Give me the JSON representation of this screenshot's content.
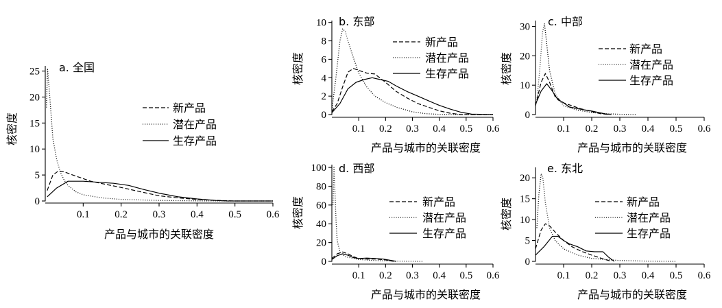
{
  "chart_data": [
    {
      "id": "a",
      "type": "line",
      "title": "a. 全国",
      "xlabel": "产品与城市的关联密度",
      "ylabel": "核密度",
      "xlim": [
        0,
        0.6
      ],
      "ylim": [
        0,
        26
      ],
      "xticks": [
        0.1,
        0.2,
        0.3,
        0.4,
        0.5,
        0.6
      ],
      "yticks": [
        0,
        5,
        10,
        15,
        20,
        25
      ],
      "legend_position": "right",
      "series": [
        {
          "name": "新产品",
          "style": "dashed",
          "x": [
            0.005,
            0.02,
            0.035,
            0.05,
            0.08,
            0.12,
            0.16,
            0.2,
            0.25,
            0.3,
            0.35,
            0.4,
            0.45,
            0.5,
            0.6
          ],
          "y": [
            2.0,
            5.0,
            5.8,
            5.6,
            4.8,
            3.8,
            3.2,
            2.6,
            1.8,
            1.0,
            0.6,
            0.3,
            0.1,
            0.0,
            0.0
          ]
        },
        {
          "name": "潜在产品",
          "style": "dotted",
          "x": [
            0.003,
            0.006,
            0.01,
            0.015,
            0.02,
            0.03,
            0.04,
            0.05,
            0.06,
            0.08,
            0.1,
            0.15,
            0.2,
            0.3,
            0.4,
            0.5,
            0.6
          ],
          "y": [
            18.0,
            25.5,
            22.0,
            17.0,
            12.0,
            8.0,
            5.5,
            4.0,
            3.0,
            1.8,
            1.2,
            0.6,
            0.3,
            0.1,
            0.02,
            0.0,
            0.0
          ]
        },
        {
          "name": "生存产品",
          "style": "solid",
          "x": [
            0.005,
            0.03,
            0.06,
            0.1,
            0.14,
            0.18,
            0.22,
            0.26,
            0.3,
            0.35,
            0.4,
            0.45,
            0.48,
            0.6
          ],
          "y": [
            0.8,
            2.5,
            3.8,
            3.8,
            3.6,
            3.4,
            3.0,
            2.2,
            1.5,
            0.8,
            0.4,
            0.1,
            0.0,
            0.0
          ]
        }
      ]
    },
    {
      "id": "b",
      "type": "line",
      "title": "b. 东部",
      "xlabel": "产品与城市的关联密度",
      "ylabel": "核密度",
      "xlim": [
        0,
        0.6
      ],
      "ylim": [
        0,
        10.2
      ],
      "xticks": [
        0.1,
        0.2,
        0.3,
        0.4,
        0.5,
        0.6
      ],
      "yticks": [
        0,
        2,
        4,
        6,
        8,
        10
      ],
      "legend_position": "top-right",
      "series": [
        {
          "name": "新产品",
          "style": "dashed",
          "x": [
            0.0,
            0.02,
            0.04,
            0.06,
            0.08,
            0.1,
            0.13,
            0.16,
            0.2,
            0.24,
            0.28,
            0.32,
            0.36,
            0.4,
            0.44,
            0.48,
            0.6
          ],
          "y": [
            0.3,
            1.2,
            3.0,
            4.6,
            5.0,
            4.8,
            4.5,
            4.4,
            3.5,
            2.5,
            1.8,
            1.2,
            0.8,
            0.4,
            0.15,
            0.0,
            0.0
          ]
        },
        {
          "name": "潜在产品",
          "style": "dotted",
          "x": [
            0.0,
            0.015,
            0.03,
            0.04,
            0.05,
            0.06,
            0.08,
            0.1,
            0.13,
            0.16,
            0.2,
            0.24,
            0.3,
            0.35,
            0.4,
            0.45,
            0.6
          ],
          "y": [
            0.5,
            4.0,
            8.0,
            9.3,
            9.0,
            8.0,
            6.2,
            4.5,
            3.0,
            2.0,
            1.3,
            0.8,
            0.3,
            0.1,
            0.02,
            0.0,
            0.0
          ]
        },
        {
          "name": "生存产品",
          "style": "solid",
          "x": [
            0.0,
            0.03,
            0.06,
            0.09,
            0.12,
            0.15,
            0.18,
            0.21,
            0.24,
            0.28,
            0.32,
            0.36,
            0.4,
            0.44,
            0.48,
            0.52,
            0.6
          ],
          "y": [
            0.2,
            1.2,
            2.8,
            3.5,
            3.8,
            4.0,
            3.8,
            3.6,
            3.1,
            2.5,
            2.0,
            1.5,
            1.0,
            0.6,
            0.25,
            0.05,
            0.0
          ]
        }
      ]
    },
    {
      "id": "c",
      "type": "line",
      "title": "c. 中部",
      "xlabel": "产品与城市的关联密度",
      "ylabel": "核密度",
      "xlim": [
        0,
        0.6
      ],
      "ylim": [
        0,
        32
      ],
      "xticks": [
        0.1,
        0.2,
        0.3,
        0.4,
        0.5,
        0.6
      ],
      "yticks": [
        0,
        10,
        20,
        30
      ],
      "legend_position": "top-right",
      "series": [
        {
          "name": "新产品",
          "style": "dashed",
          "x": [
            0.0,
            0.02,
            0.035,
            0.05,
            0.07,
            0.1,
            0.13,
            0.16,
            0.2,
            0.23,
            0.26
          ],
          "y": [
            3.0,
            11.0,
            14.0,
            11.0,
            6.0,
            4.0,
            3.0,
            2.0,
            1.0,
            0.3,
            0.0
          ]
        },
        {
          "name": "潜在产品",
          "style": "dotted",
          "x": [
            0.005,
            0.015,
            0.025,
            0.032,
            0.04,
            0.05,
            0.07,
            0.1,
            0.15,
            0.2,
            0.25,
            0.3,
            0.36
          ],
          "y": [
            5.0,
            15.0,
            28.0,
            31.0,
            24.0,
            15.0,
            7.0,
            3.0,
            1.5,
            0.7,
            0.3,
            0.1,
            0.0
          ]
        },
        {
          "name": "生存产品",
          "style": "solid",
          "x": [
            0.0,
            0.02,
            0.04,
            0.06,
            0.08,
            0.1,
            0.12,
            0.15,
            0.18,
            0.2,
            0.22,
            0.25,
            0.27
          ],
          "y": [
            3.5,
            8.0,
            10.5,
            8.0,
            5.0,
            4.0,
            2.6,
            2.0,
            1.5,
            1.2,
            0.8,
            0.2,
            0.0
          ]
        }
      ]
    },
    {
      "id": "d",
      "type": "line",
      "title": "d. 西部",
      "xlabel": "产品与城市的关联密度",
      "ylabel": "核密度",
      "xlim": [
        0,
        0.6
      ],
      "ylim": [
        0,
        103
      ],
      "xticks": [
        0.1,
        0.2,
        0.3,
        0.4,
        0.5,
        0.6
      ],
      "yticks": [
        0,
        20,
        40,
        60,
        80,
        100
      ],
      "legend_position": "right",
      "series": [
        {
          "name": "新产品",
          "style": "dashed",
          "x": [
            0.0,
            0.02,
            0.04,
            0.06,
            0.08,
            0.1,
            0.13,
            0.16,
            0.2,
            0.23
          ],
          "y": [
            3.0,
            8.0,
            10.0,
            8.0,
            5.0,
            3.0,
            2.5,
            2.5,
            1.5,
            0.0
          ]
        },
        {
          "name": "潜在产品",
          "style": "dotted",
          "x": [
            0.004,
            0.008,
            0.012,
            0.016,
            0.02,
            0.03,
            0.05,
            0.1,
            0.15,
            0.2,
            0.25,
            0.3,
            0.34
          ],
          "y": [
            60.0,
            100.0,
            70.0,
            40.0,
            22.0,
            10.0,
            5.0,
            2.0,
            1.0,
            0.5,
            0.2,
            0.05,
            0.0
          ]
        },
        {
          "name": "生存产品",
          "style": "solid",
          "x": [
            0.0,
            0.02,
            0.04,
            0.06,
            0.08,
            0.1,
            0.13,
            0.16,
            0.19,
            0.22,
            0.24
          ],
          "y": [
            2.0,
            6.0,
            8.0,
            6.5,
            4.0,
            3.0,
            3.5,
            3.0,
            2.5,
            1.0,
            0.0
          ]
        }
      ]
    },
    {
      "id": "e",
      "type": "line",
      "title": "e. 东北",
      "xlabel": "产品与城市的关联密度",
      "ylabel": "核密度",
      "xlim": [
        0,
        0.6
      ],
      "ylim": [
        0,
        22.5
      ],
      "xticks": [
        0.1,
        0.2,
        0.3,
        0.4,
        0.5,
        0.6
      ],
      "yticks": [
        0,
        5,
        10,
        15,
        20
      ],
      "legend_position": "right",
      "series": [
        {
          "name": "新产品",
          "style": "dashed",
          "x": [
            0.0,
            0.02,
            0.035,
            0.05,
            0.07,
            0.1,
            0.13,
            0.16,
            0.2,
            0.24,
            0.27
          ],
          "y": [
            3.0,
            7.5,
            9.0,
            8.5,
            7.0,
            5.0,
            3.5,
            2.5,
            1.5,
            0.6,
            0.0
          ]
        },
        {
          "name": "潜在产品",
          "style": "dotted",
          "x": [
            0.005,
            0.012,
            0.02,
            0.026,
            0.035,
            0.05,
            0.07,
            0.1,
            0.15,
            0.2,
            0.3,
            0.4,
            0.5
          ],
          "y": [
            8.0,
            16.0,
            21.0,
            20.0,
            14.0,
            8.0,
            5.0,
            3.0,
            1.5,
            0.7,
            0.2,
            0.05,
            0.0
          ]
        },
        {
          "name": "生存产品",
          "style": "solid",
          "x": [
            0.0,
            0.03,
            0.06,
            0.08,
            0.1,
            0.12,
            0.15,
            0.18,
            0.21,
            0.24,
            0.26,
            0.28
          ],
          "y": [
            1.5,
            3.5,
            6.0,
            6.0,
            5.0,
            4.2,
            3.5,
            2.5,
            2.3,
            2.3,
            1.0,
            0.0
          ]
        }
      ]
    }
  ]
}
